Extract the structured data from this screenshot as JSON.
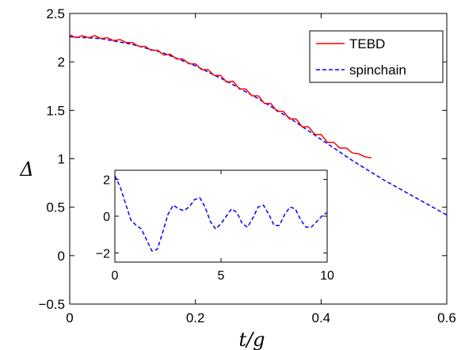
{
  "chart_data": {
    "type": "line",
    "xlabel": "t/g",
    "ylabel": "Δ",
    "xlim": [
      0,
      0.6
    ],
    "ylim": [
      -0.5,
      2.5
    ],
    "xticks": [
      "0",
      "0.2",
      "0.4",
      "0.6"
    ],
    "yticks": [
      "−0.5",
      "0",
      "0.5",
      "1",
      "1.5",
      "2",
      "2.5"
    ],
    "legend_position": "top-right",
    "grid": false,
    "series": [
      {
        "name": "TEBD",
        "color": "#ff0000",
        "style": "solid",
        "x": [
          0,
          0.01,
          0.02,
          0.03,
          0.04,
          0.05,
          0.06,
          0.07,
          0.08,
          0.09,
          0.1,
          0.11,
          0.12,
          0.13,
          0.14,
          0.15,
          0.16,
          0.17,
          0.18,
          0.19,
          0.2,
          0.21,
          0.22,
          0.23,
          0.24,
          0.25,
          0.26,
          0.27,
          0.28,
          0.29,
          0.3,
          0.31,
          0.32,
          0.33,
          0.34,
          0.35,
          0.36,
          0.37,
          0.38,
          0.39,
          0.4,
          0.41,
          0.42,
          0.43,
          0.44,
          0.45,
          0.46,
          0.47,
          0.48
        ],
        "y": [
          2.28,
          2.25,
          2.27,
          2.25,
          2.27,
          2.24,
          2.25,
          2.22,
          2.23,
          2.2,
          2.2,
          2.16,
          2.16,
          2.12,
          2.12,
          2.07,
          2.08,
          2.03,
          2.03,
          1.98,
          1.98,
          1.92,
          1.92,
          1.86,
          1.86,
          1.79,
          1.8,
          1.72,
          1.72,
          1.65,
          1.65,
          1.57,
          1.57,
          1.49,
          1.49,
          1.41,
          1.41,
          1.33,
          1.33,
          1.25,
          1.25,
          1.17,
          1.17,
          1.11,
          1.11,
          1.06,
          1.05,
          1.02,
          1.01
        ]
      },
      {
        "name": "spinchain",
        "color": "#0000ff",
        "style": "dashed",
        "x": [
          0,
          0.05,
          0.1,
          0.15,
          0.2,
          0.25,
          0.3,
          0.35,
          0.4,
          0.45,
          0.5,
          0.55,
          0.6
        ],
        "y": [
          2.26,
          2.24,
          2.18,
          2.09,
          1.96,
          1.8,
          1.62,
          1.42,
          1.2,
          0.98,
          0.78,
          0.6,
          0.42
        ]
      }
    ],
    "inset": {
      "type": "line",
      "xlim": [
        0,
        10
      ],
      "ylim": [
        -2.5,
        2.5
      ],
      "xticks": [
        "0",
        "5",
        "10"
      ],
      "yticks": [
        "−2",
        "0",
        "2"
      ],
      "series": [
        {
          "color": "#0000ff",
          "style": "dashed",
          "x": [
            0,
            0.25,
            0.5,
            0.75,
            1,
            1.25,
            1.5,
            1.75,
            2,
            2.25,
            2.5,
            2.75,
            3,
            3.25,
            3.5,
            3.75,
            4,
            4.25,
            4.5,
            4.75,
            5,
            5.25,
            5.5,
            5.75,
            6,
            6.25,
            6.5,
            6.75,
            7,
            7.25,
            7.5,
            7.75,
            8,
            8.25,
            8.5,
            8.75,
            9,
            9.25,
            9.5,
            9.75,
            10
          ],
          "y": [
            2.2,
            1.6,
            0.7,
            -0.2,
            -0.5,
            -0.7,
            -1.3,
            -1.9,
            -1.8,
            -0.9,
            0.1,
            0.6,
            0.4,
            0.3,
            0.5,
            0.9,
            1.0,
            0.5,
            -0.3,
            -0.7,
            -0.4,
            0.0,
            0.4,
            0.2,
            -0.4,
            -0.6,
            -0.1,
            0.5,
            0.6,
            0.1,
            -0.5,
            -0.5,
            0.1,
            0.5,
            0.4,
            -0.2,
            -0.6,
            -0.6,
            -0.3,
            0.0,
            0.2
          ]
        }
      ]
    }
  }
}
